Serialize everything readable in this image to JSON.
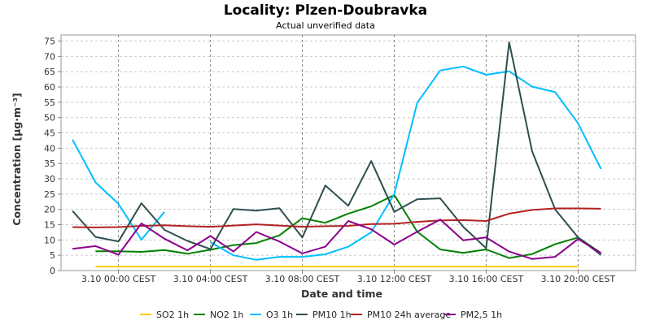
{
  "chart_data": {
    "type": "line",
    "title": "Locality: Plzen-Doubravka",
    "subtitle": "Actual unverified data",
    "xlabel": "Date and time",
    "ylabel": "Concentration [µg·m⁻³]",
    "x_ticks": [
      {
        "label": "3.10 00:00 CEST",
        "hour": 0
      },
      {
        "label": "3.10 04:00 CEST",
        "hour": 4
      },
      {
        "label": "3.10 08:00 CEST",
        "hour": 8
      },
      {
        "label": "3.10 12:00 CEST",
        "hour": 12
      },
      {
        "label": "3.10 16:00 CEST",
        "hour": 16
      },
      {
        "label": "3.10 20:00 CEST",
        "hour": 20
      }
    ],
    "xlim": [
      -2.5,
      22.5
    ],
    "ylim": [
      0,
      77
    ],
    "y_ticks": [
      0,
      5,
      10,
      15,
      20,
      25,
      30,
      35,
      40,
      45,
      50,
      55,
      60,
      65,
      70,
      75
    ],
    "grid": true,
    "legend_position": "bottom",
    "series": [
      {
        "name": "SO2 1h",
        "color": "#ffcc00",
        "points": [
          [
            -1,
            1.3
          ],
          [
            0,
            1.3
          ],
          [
            1,
            1.3
          ],
          [
            2,
            1.3
          ],
          [
            3,
            1.3
          ],
          [
            4,
            1.3
          ],
          [
            5,
            1.3
          ],
          [
            6,
            1.3
          ],
          [
            7,
            1.3
          ],
          [
            8,
            1.3
          ],
          [
            9,
            1.3
          ],
          [
            10,
            1.3
          ],
          [
            11,
            1.3
          ],
          [
            12,
            1.3
          ],
          [
            13,
            1.3
          ],
          [
            14,
            1.3
          ],
          [
            15,
            1.3
          ],
          [
            16,
            1.3
          ],
          [
            17,
            1.3
          ],
          [
            18,
            1.3
          ],
          [
            19,
            1.3
          ],
          [
            20,
            1.3
          ]
        ]
      },
      {
        "name": "NO2 1h",
        "color": "#008000",
        "points": [
          [
            -1,
            6.3
          ],
          [
            0,
            6.3
          ],
          [
            1,
            6.1
          ],
          [
            2,
            6.7
          ],
          [
            3,
            5.5
          ],
          [
            4,
            6.8
          ],
          [
            5,
            8.3
          ],
          [
            6,
            9
          ],
          [
            7,
            11.5
          ],
          [
            8,
            17.1
          ],
          [
            9,
            15.6
          ],
          [
            10,
            18.6
          ],
          [
            11,
            21
          ],
          [
            12,
            24.7
          ],
          [
            13,
            12.7
          ],
          [
            14,
            6.9
          ],
          [
            15,
            5.8
          ],
          [
            16,
            6.9
          ],
          [
            17,
            4.1
          ],
          [
            18,
            5.4
          ],
          [
            19,
            8.6
          ],
          [
            20,
            10.8
          ],
          [
            21,
            5.7
          ]
        ]
      },
      {
        "name": "O3 1h",
        "color": "#00bfff",
        "segments": [
          [
            [
              -2,
              42.8
            ],
            [
              -1,
              28.8
            ],
            [
              0,
              21.8
            ],
            [
              1,
              10.1
            ],
            [
              2,
              19.2
            ]
          ],
          [
            [
              4,
              9.3
            ],
            [
              5,
              5
            ],
            [
              6,
              3.5
            ],
            [
              7,
              4.5
            ],
            [
              8,
              4.5
            ],
            [
              9,
              5.3
            ],
            [
              10,
              7.8
            ],
            [
              11,
              12.5
            ],
            [
              12,
              25
            ],
            [
              13,
              54.8
            ],
            [
              14,
              65.4
            ],
            [
              15,
              66.7
            ],
            [
              16,
              64
            ],
            [
              17,
              65.1
            ],
            [
              18,
              60.1
            ],
            [
              19,
              58.3
            ],
            [
              20,
              48.1
            ],
            [
              21,
              33.2
            ]
          ]
        ]
      },
      {
        "name": "PM10 1h",
        "color": "#2f4f4f",
        "points": [
          [
            -2,
            19.5
          ],
          [
            -1,
            11
          ],
          [
            0,
            9.5
          ],
          [
            1,
            22
          ],
          [
            2,
            13.3
          ],
          [
            3,
            9.7
          ],
          [
            4,
            7
          ],
          [
            5,
            20.1
          ],
          [
            6,
            19.6
          ],
          [
            7,
            20.4
          ],
          [
            8,
            10.8
          ],
          [
            9,
            27.8
          ],
          [
            10,
            21.2
          ],
          [
            11,
            35.8
          ],
          [
            12,
            19.2
          ],
          [
            13,
            23.3
          ],
          [
            14,
            23.6
          ],
          [
            15,
            14.3
          ],
          [
            16,
            7.3
          ],
          [
            17,
            74.6
          ],
          [
            18,
            39
          ],
          [
            19,
            20
          ],
          [
            20,
            10.8
          ],
          [
            21,
            5.1
          ]
        ]
      },
      {
        "name": "PM10 24h average",
        "color": "#b22222",
        "points": [
          [
            -2,
            14.2
          ],
          [
            -1,
            14.1
          ],
          [
            0,
            14.2
          ],
          [
            1,
            14.6
          ],
          [
            2,
            14.8
          ],
          [
            3,
            14.5
          ],
          [
            4,
            14.3
          ],
          [
            5,
            14.7
          ],
          [
            6,
            15.1
          ],
          [
            7,
            14.7
          ],
          [
            8,
            14.3
          ],
          [
            9,
            14.5
          ],
          [
            10,
            14.6
          ],
          [
            11,
            15.2
          ],
          [
            12,
            15.3
          ],
          [
            13,
            15.9
          ],
          [
            14,
            16.4
          ],
          [
            15,
            16.5
          ],
          [
            16,
            16.2
          ],
          [
            17,
            18.6
          ],
          [
            18,
            19.8
          ],
          [
            19,
            20.3
          ],
          [
            20,
            20.3
          ],
          [
            21,
            20.2
          ]
        ]
      },
      {
        "name": "PM2,5 1h",
        "color": "#8b008b",
        "points": [
          [
            -2,
            7.1
          ],
          [
            -1,
            8
          ],
          [
            0,
            5.2
          ],
          [
            1,
            15.4
          ],
          [
            2,
            10.4
          ],
          [
            3,
            6.6
          ],
          [
            4,
            11.3
          ],
          [
            5,
            6.2
          ],
          [
            6,
            12.6
          ],
          [
            7,
            9.5
          ],
          [
            8,
            5.6
          ],
          [
            9,
            7.8
          ],
          [
            10,
            16.2
          ],
          [
            11,
            13.5
          ],
          [
            12,
            8.5
          ],
          [
            13,
            12.7
          ],
          [
            14,
            16.7
          ],
          [
            15,
            9.9
          ],
          [
            16,
            10.8
          ],
          [
            17,
            6.2
          ],
          [
            18,
            3.8
          ],
          [
            19,
            4.5
          ],
          [
            20,
            10.3
          ],
          [
            21,
            5.7
          ]
        ]
      }
    ]
  }
}
